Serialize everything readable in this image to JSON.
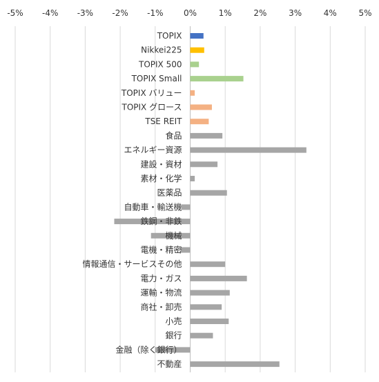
{
  "chart_data": {
    "type": "bar",
    "orientation": "horizontal",
    "xlim": [
      -5,
      5
    ],
    "x_ticks": [
      "-5%",
      "-4%",
      "-3%",
      "-2%",
      "-1%",
      "0%",
      "1%",
      "2%",
      "3%",
      "4%",
      "5%"
    ],
    "x_tick_values": [
      -5,
      -4,
      -3,
      -2,
      -1,
      0,
      1,
      2,
      3,
      4,
      5
    ],
    "grid": true,
    "legend": "none",
    "categories": [
      "TOPIX",
      "Nikkei225",
      "TOPIX 500",
      "TOPIX Small",
      "TOPIX バリュー",
      "TOPIX グロース",
      "TSE REIT",
      "食品",
      "エネルギー資源",
      "建設・資材",
      "素材・化学",
      "医薬品",
      "自動車・輸送機",
      "鉄鋼・非鉄",
      "機械",
      "電機・精密",
      "情報通信・サービスその他",
      "電力・ガス",
      "運輸・物流",
      "商社・卸売",
      "小売",
      "銀行",
      "金融（除く銀行）",
      "不動産"
    ],
    "values": [
      0.38,
      0.4,
      0.25,
      1.52,
      0.13,
      0.62,
      0.53,
      0.92,
      3.32,
      0.78,
      0.13,
      1.05,
      -0.25,
      -2.17,
      -1.12,
      -0.28,
      1.0,
      1.62,
      1.13,
      0.9,
      1.1,
      0.65,
      -1.0,
      2.55
    ],
    "colors": [
      "#4472c4",
      "#ffc000",
      "#a9d18e",
      "#a9d18e",
      "#f4b183",
      "#f4b183",
      "#f4b183",
      "#a6a6a6",
      "#a6a6a6",
      "#a6a6a6",
      "#a6a6a6",
      "#a6a6a6",
      "#a6a6a6",
      "#a6a6a6",
      "#a6a6a6",
      "#a6a6a6",
      "#a6a6a6",
      "#a6a6a6",
      "#a6a6a6",
      "#a6a6a6",
      "#a6a6a6",
      "#a6a6a6",
      "#a6a6a6",
      "#a6a6a6"
    ]
  }
}
